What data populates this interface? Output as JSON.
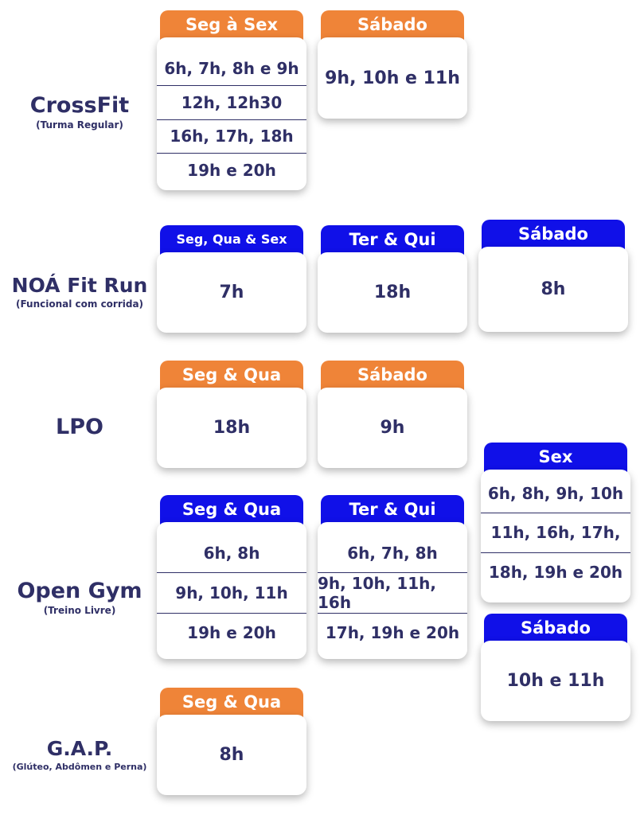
{
  "colors": {
    "orange": "#ef8438",
    "blue": "#1010e8",
    "navy": "#2f2f66"
  },
  "crossfit": {
    "name": "CrossFit",
    "sub": "(Turma Regular)",
    "weekdays": {
      "tab": "Seg à Sex",
      "times": [
        "6h, 7h, 8h e 9h",
        "12h, 12h30",
        "16h, 17h, 18h",
        "19h e 20h"
      ]
    },
    "saturday": {
      "tab": "Sábado",
      "times": [
        "9h, 10h e 11h"
      ]
    }
  },
  "fitrun": {
    "name": "NOÁ Fit Run",
    "sub": "(Funcional com corrida)",
    "mwf": {
      "tab": "Seg, Qua & Sex",
      "times": [
        "7h"
      ]
    },
    "tt": {
      "tab": "Ter & Qui",
      "times": [
        "18h"
      ]
    },
    "saturday": {
      "tab": "Sábado",
      "times": [
        "8h"
      ]
    }
  },
  "lpo": {
    "name": "LPO",
    "mw": {
      "tab": "Seg & Qua",
      "times": [
        "18h"
      ]
    },
    "saturday": {
      "tab": "Sábado",
      "times": [
        "9h"
      ]
    }
  },
  "opengym": {
    "name": "Open Gym",
    "sub": "(Treino Livre)",
    "mw": {
      "tab": "Seg & Qua",
      "times": [
        "6h, 8h",
        "9h, 10h, 11h",
        "19h e 20h"
      ]
    },
    "tt": {
      "tab": "Ter & Qui",
      "times": [
        "6h, 7h, 8h",
        "9h, 10h, 11h, 16h",
        "17h, 19h e 20h"
      ]
    },
    "fri": {
      "tab": "Sex",
      "times": [
        "6h, 8h, 9h, 10h",
        "11h, 16h, 17h,",
        "18h, 19h e 20h"
      ]
    },
    "saturday": {
      "tab": "Sábado",
      "times": [
        "10h e 11h"
      ]
    }
  },
  "gap": {
    "name": "G.A.P.",
    "sub": "(Glúteo, Abdômen e Perna)",
    "mw": {
      "tab": "Seg & Qua",
      "times": [
        "8h"
      ]
    }
  }
}
